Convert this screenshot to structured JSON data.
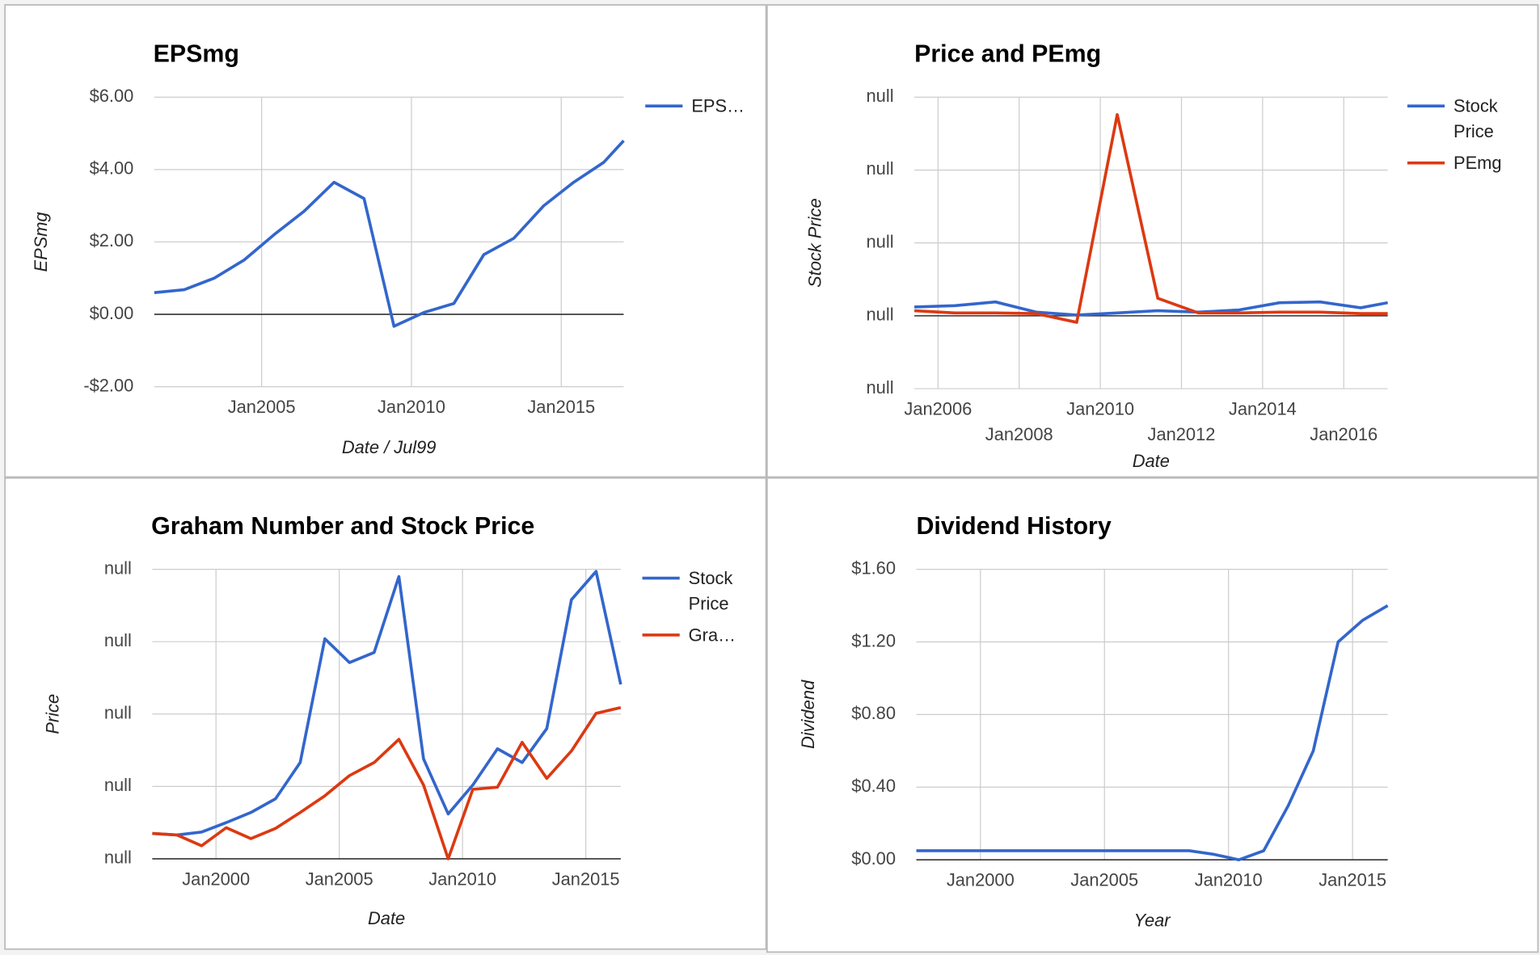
{
  "chart_data": [
    {
      "type": "line",
      "title": "EPSmg",
      "y_label": "EPSmg",
      "x_label": "Date / Jul99",
      "grid": true,
      "legend": "right",
      "x": [
        "2001-06",
        "2002-06",
        "2003-06",
        "2004-06",
        "2005-06",
        "2006-06",
        "2007-06",
        "2008-06",
        "2009-06",
        "2010-06",
        "2011-06",
        "2012-06",
        "2013-06",
        "2014-06",
        "2015-06",
        "2016-06",
        "2017-02"
      ],
      "series": [
        {
          "name": "EPS…",
          "color": "#3366cc",
          "values": [
            0.6,
            0.68,
            1.0,
            1.5,
            2.2,
            2.85,
            3.65,
            3.2,
            -0.33,
            0.05,
            0.3,
            1.65,
            2.1,
            3.0,
            3.65,
            4.2,
            4.8
          ]
        }
      ],
      "xlim": [
        "2001-06",
        "2017-02"
      ],
      "ylim": [
        -2,
        6
      ],
      "xticks": [
        {
          "value": "2005-01",
          "label": "Jan2005"
        },
        {
          "value": "2010-01",
          "label": "Jan2010"
        },
        {
          "value": "2015-01",
          "label": "Jan2015"
        }
      ],
      "yticks": [
        {
          "value": -2,
          "label": "-$2.00"
        },
        {
          "value": 0,
          "label": "$0.00"
        },
        {
          "value": 2,
          "label": "$2.00"
        },
        {
          "value": 4,
          "label": "$4.00"
        },
        {
          "value": 6,
          "label": "$6.00"
        }
      ]
    },
    {
      "type": "line",
      "title": "Price and PEmg",
      "y_label": "Stock Price",
      "x_label": "Date",
      "grid": true,
      "legend": "right",
      "x": [
        "2005-06",
        "2006-06",
        "2007-06",
        "2008-06",
        "2009-06",
        "2010-06",
        "2011-06",
        "2012-06",
        "2013-06",
        "2014-06",
        "2015-06",
        "2016-06",
        "2017-02"
      ],
      "series": [
        {
          "name": "Stock Price",
          "color": "#3366cc",
          "values": [
            0.12,
            0.14,
            0.19,
            0.05,
            0.01,
            0.04,
            0.07,
            0.05,
            0.08,
            0.18,
            0.19,
            0.11,
            0.18
          ]
        },
        {
          "name": "PEmg",
          "color": "#dc3912",
          "values": [
            0.07,
            0.04,
            0.04,
            0.03,
            -0.09,
            2.76,
            0.24,
            0.04,
            0.04,
            0.05,
            0.05,
            0.03,
            0.03
          ]
        }
      ],
      "xlim": [
        "2005-06",
        "2017-02"
      ],
      "ylim": [
        -1,
        3
      ],
      "xticks": [
        {
          "value": "2006-01",
          "label": "Jan2006"
        },
        {
          "value": "2008-01",
          "label": "Jan2008"
        },
        {
          "value": "2010-01",
          "label": "Jan2010"
        },
        {
          "value": "2012-01",
          "label": "Jan2012"
        },
        {
          "value": "2014-01",
          "label": "Jan2014"
        },
        {
          "value": "2016-01",
          "label": "Jan2016"
        }
      ],
      "yticks": [
        {
          "value": -1,
          "label": "null"
        },
        {
          "value": 0,
          "label": "null"
        },
        {
          "value": 1,
          "label": "null"
        },
        {
          "value": 2,
          "label": "null"
        },
        {
          "value": 3,
          "label": "null"
        }
      ]
    },
    {
      "type": "line",
      "title": "Graham Number and Stock Price",
      "y_label": "Price",
      "x_label": "Date",
      "grid": true,
      "legend": "right",
      "x": [
        "1997-06",
        "1998-06",
        "1999-06",
        "2000-06",
        "2001-06",
        "2002-06",
        "2003-06",
        "2004-06",
        "2005-06",
        "2006-06",
        "2007-06",
        "2008-06",
        "2009-06",
        "2010-06",
        "2011-06",
        "2012-06",
        "2013-06",
        "2014-06",
        "2015-06",
        "2016-06"
      ],
      "series": [
        {
          "name": "Stock Price",
          "color": "#3366cc",
          "values": [
            0.35,
            0.33,
            0.37,
            0.5,
            0.64,
            0.83,
            1.33,
            3.04,
            2.71,
            2.85,
            3.9,
            1.38,
            0.62,
            1.02,
            1.52,
            1.33,
            1.8,
            3.58,
            3.97,
            2.41
          ]
        },
        {
          "name": "Gra…",
          "color": "#dc3912",
          "values": [
            0.35,
            0.33,
            0.18,
            0.43,
            0.28,
            0.42,
            0.64,
            0.87,
            1.15,
            1.33,
            1.65,
            1.02,
            0.0,
            0.96,
            0.99,
            1.61,
            1.11,
            1.49,
            2.01,
            2.09
          ]
        }
      ],
      "xlim": [
        "1997-06",
        "2016-06"
      ],
      "ylim": [
        0,
        4
      ],
      "xticks": [
        {
          "value": "2000-01",
          "label": "Jan2000"
        },
        {
          "value": "2005-01",
          "label": "Jan2005"
        },
        {
          "value": "2010-01",
          "label": "Jan2010"
        },
        {
          "value": "2015-01",
          "label": "Jan2015"
        }
      ],
      "yticks": [
        {
          "value": 0,
          "label": "null"
        },
        {
          "value": 1,
          "label": "null"
        },
        {
          "value": 2,
          "label": "null"
        },
        {
          "value": 3,
          "label": "null"
        },
        {
          "value": 4,
          "label": "null"
        }
      ]
    },
    {
      "type": "line",
      "title": "Dividend History",
      "y_label": "Dividend",
      "x_label": "Year",
      "grid": true,
      "color": "#3366cc",
      "x": [
        "1997-06",
        "1998-06",
        "1999-06",
        "2000-06",
        "2001-06",
        "2002-06",
        "2003-06",
        "2004-06",
        "2005-06",
        "2006-06",
        "2007-06",
        "2008-06",
        "2009-06",
        "2010-06",
        "2011-06",
        "2012-06",
        "2013-06",
        "2014-06",
        "2015-06",
        "2016-06"
      ],
      "values": [
        0.05,
        0.05,
        0.05,
        0.05,
        0.05,
        0.05,
        0.05,
        0.05,
        0.05,
        0.05,
        0.05,
        0.05,
        0.03,
        0.0,
        0.05,
        0.3,
        0.6,
        1.2,
        1.32,
        1.4
      ],
      "xlim": [
        "1997-06",
        "2016-06"
      ],
      "ylim": [
        0,
        1.6
      ],
      "xticks": [
        {
          "value": "2000-01",
          "label": "Jan2000"
        },
        {
          "value": "2005-01",
          "label": "Jan2005"
        },
        {
          "value": "2010-01",
          "label": "Jan2010"
        },
        {
          "value": "2015-01",
          "label": "Jan2015"
        }
      ],
      "yticks": [
        {
          "value": 0,
          "label": "$0.00"
        },
        {
          "value": 0.4,
          "label": "$0.40"
        },
        {
          "value": 0.8,
          "label": "$0.80"
        },
        {
          "value": 1.2,
          "label": "$1.20"
        },
        {
          "value": 1.6,
          "label": "$1.60"
        }
      ]
    }
  ]
}
